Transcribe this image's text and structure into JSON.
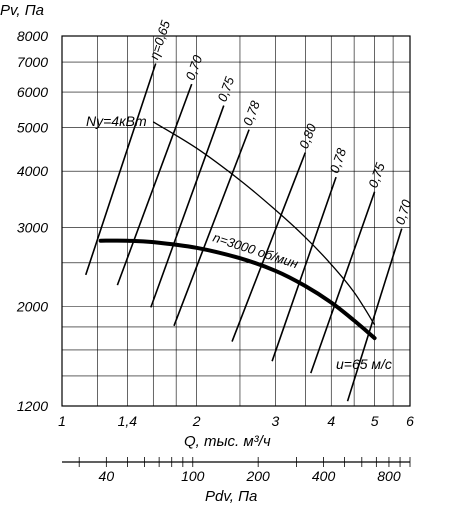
{
  "chart_data": {
    "type": "line",
    "y_axis_title": "Pv, Па",
    "x_axis_title": "Q, тыс. м³/ч",
    "x2_axis_title": "Pdv, Па",
    "y_scale": "log",
    "x_scale": "log",
    "ylim": [
      1200,
      8000
    ],
    "xlim": [
      1,
      6
    ],
    "x2lim": [
      25,
      1000
    ],
    "y_ticks": [
      {
        "value": 1200,
        "label": "1200"
      },
      {
        "value": 2000,
        "label": "2000"
      },
      {
        "value": 3000,
        "label": "3000"
      },
      {
        "value": 4000,
        "label": "4000"
      },
      {
        "value": 5000,
        "label": "5000"
      },
      {
        "value": 6000,
        "label": "6000"
      },
      {
        "value": 7000,
        "label": "7000"
      },
      {
        "value": 8000,
        "label": "8000"
      }
    ],
    "x_ticks": [
      {
        "value": 1,
        "label": "1"
      },
      {
        "value": 1.4,
        "label": "1,4"
      },
      {
        "value": 2,
        "label": "2"
      },
      {
        "value": 3,
        "label": "3"
      },
      {
        "value": 4,
        "label": "4"
      },
      {
        "value": 5,
        "label": "5"
      },
      {
        "value": 6,
        "label": "6"
      }
    ],
    "x2_ticks": [
      {
        "value": 40,
        "label": "40"
      },
      {
        "value": 100,
        "label": "100"
      },
      {
        "value": 200,
        "label": "200"
      },
      {
        "value": 400,
        "label": "400"
      },
      {
        "value": 800,
        "label": "800"
      }
    ],
    "y_grid": [
      1200,
      1400,
      1600,
      1800,
      2000,
      2500,
      3000,
      4000,
      5000,
      6000,
      7000,
      8000
    ],
    "x_grid": [
      1,
      1.2,
      1.4,
      1.6,
      1.8,
      2,
      2.5,
      3,
      3.5,
      4,
      4.5,
      5,
      5.5,
      6
    ],
    "series": [
      {
        "name": "n=3000 об/мин",
        "role": "pressure",
        "x": [
          1.22,
          1.4,
          1.6,
          2.0,
          2.5,
          3.0,
          3.5,
          4.0,
          4.5,
          5.0
        ],
        "y": [
          2800,
          2800,
          2780,
          2700,
          2560,
          2400,
          2220,
          2040,
          1860,
          1700
        ]
      },
      {
        "name": "Ny=4кВт",
        "role": "power",
        "x": [
          1.6,
          2.0,
          2.5,
          3.0,
          3.5,
          4.0,
          4.5,
          5.0
        ],
        "y": [
          5150,
          4500,
          3820,
          3280,
          2850,
          2480,
          2150,
          1820
        ]
      }
    ],
    "efficiency_lines": [
      {
        "label": "η=0,65",
        "x": [
          1.13,
          1.62
        ],
        "y": [
          2350,
          6950
        ]
      },
      {
        "label": "0,70",
        "x": [
          1.33,
          1.95
        ],
        "y": [
          2230,
          6250
        ]
      },
      {
        "label": "0,75",
        "x": [
          1.58,
          2.3
        ],
        "y": [
          1990,
          5600
        ]
      },
      {
        "label": "0,78",
        "x": [
          1.78,
          2.62
        ],
        "y": [
          1810,
          4950
        ]
      },
      {
        "label": "0,80",
        "x": [
          2.4,
          3.5
        ],
        "y": [
          1670,
          4400
        ]
      },
      {
        "label": "0,78",
        "x": [
          2.95,
          4.1
        ],
        "y": [
          1510,
          3880
        ]
      },
      {
        "label": "0,75",
        "x": [
          3.6,
          5.0
        ],
        "y": [
          1420,
          3600
        ]
      },
      {
        "label": "0,70",
        "x": [
          4.35,
          5.75
        ],
        "y": [
          1230,
          2980
        ]
      }
    ],
    "annotations": {
      "power": "Ny=4кВт",
      "speed": "n=3000 об/мин",
      "velocity": "u=65 м/с"
    }
  }
}
